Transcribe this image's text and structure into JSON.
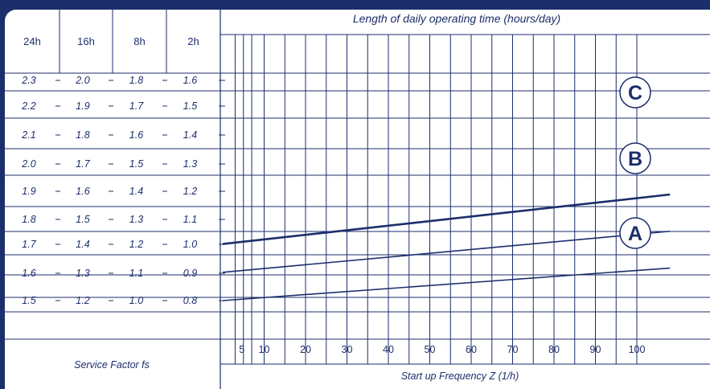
{
  "chart_data": {
    "type": "line",
    "title": "Length of daily operating time (hours/day)",
    "xlabel": "Start up Frequency Z (1/h)",
    "ylabel": "Service Factor fs",
    "x_ticks": [
      5,
      10,
      20,
      30,
      40,
      50,
      60,
      70,
      80,
      90,
      100
    ],
    "xlim": [
      0,
      110
    ],
    "table_columns": [
      "24h",
      "16h",
      "8h",
      "2h"
    ],
    "table_rows": [
      [
        "2.3",
        "2.0",
        "1.8",
        "1.6"
      ],
      [
        "2.2",
        "1.9",
        "1.7",
        "1.5"
      ],
      [
        "2.1",
        "1.8",
        "1.6",
        "1.4"
      ],
      [
        "2.0",
        "1.7",
        "1.5",
        "1.3"
      ],
      [
        "1.9",
        "1.6",
        "1.4",
        "1.2"
      ],
      [
        "1.8",
        "1.5",
        "1.3",
        "1.1"
      ],
      [
        "1.7",
        "1.4",
        "1.2",
        "1.0"
      ],
      [
        "1.6",
        "1.3",
        "1.1",
        "0.9"
      ],
      [
        "1.5",
        "1.2",
        "1.0",
        "0.8"
      ]
    ],
    "ref_column": 3,
    "ylim": [
      0.6,
      1.7
    ],
    "series": [
      {
        "name": "A",
        "x": [
          0,
          108
        ],
        "y": [
          0.8,
          1.03
        ]
      },
      {
        "name": "B",
        "x": [
          0,
          108
        ],
        "y": [
          1.0,
          1.29
        ]
      },
      {
        "name": "C",
        "x": [
          0,
          108
        ],
        "y": [
          1.2,
          1.55
        ]
      }
    ],
    "grid": true,
    "colors": {
      "ink": "#1c2e6b",
      "background": "#1c2e6b",
      "panel": "#ffffff"
    }
  }
}
